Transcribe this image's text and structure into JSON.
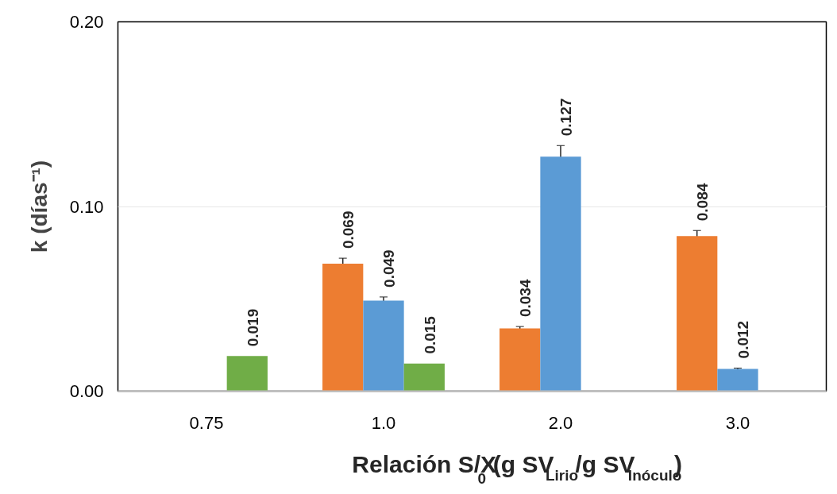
{
  "chart_data": {
    "type": "bar",
    "xlabel": "Relación S/X$_{0}$ (g SV$_{Lirio}$/g SV$_{Inóculo}$)",
    "ylabel": "k (días⁻¹)",
    "categories": [
      "0.75",
      "1.0",
      "2.0",
      "3.0"
    ],
    "series": [
      {
        "color": "#ed7d31",
        "values": [
          null,
          0.069,
          0.034,
          0.084
        ],
        "errors": [
          null,
          0.003,
          0.001,
          0.003
        ]
      },
      {
        "color": "#5b9bd5",
        "values": [
          null,
          0.049,
          0.127,
          0.012
        ],
        "errors": [
          null,
          0.002,
          0.006,
          0.0005
        ]
      },
      {
        "color": "#70ad47",
        "values": [
          0.019,
          0.015,
          null,
          null
        ]
      }
    ],
    "ylim": [
      0,
      0.2
    ],
    "yticks": [
      {
        "value": 0,
        "label": "0.00"
      },
      {
        "value": 0.1,
        "label": "0.10"
      },
      {
        "value": 0.2,
        "label": "0.20"
      }
    ],
    "grid": "y",
    "data_labels": true
  }
}
